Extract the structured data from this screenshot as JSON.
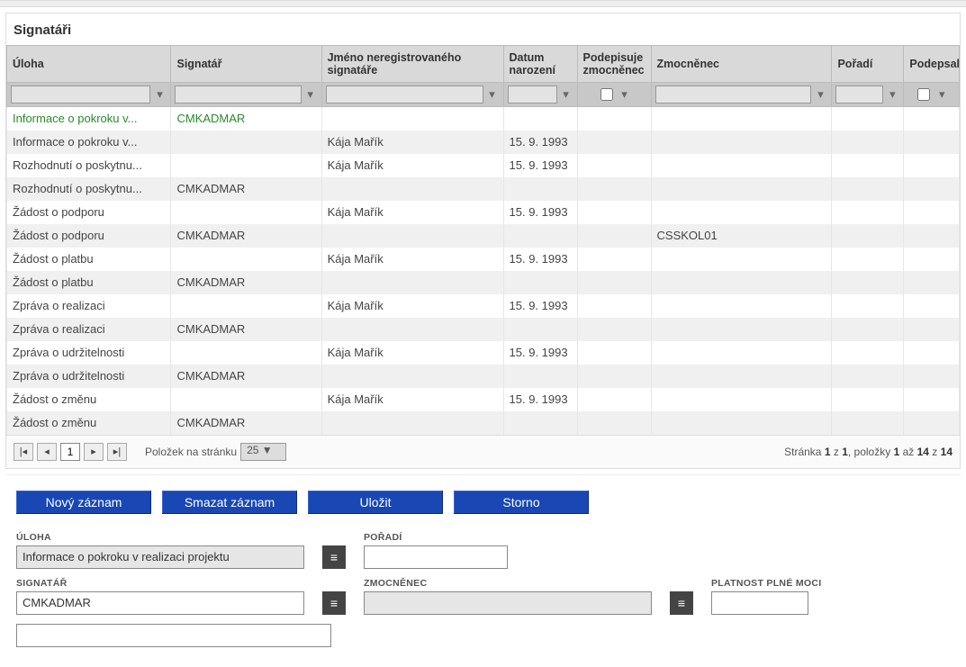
{
  "title": "Signatáři",
  "columns": {
    "uloha": "Úloha",
    "signatar": "Signatář",
    "jmeno": "Jméno neregistrovaného signatáře",
    "datum": "Datum narození",
    "podepisuje": "Podepisuje zmocněnec",
    "zmocnenec": "Zmocněnec",
    "poradi": "Pořadí",
    "podepsal": "Podepsal"
  },
  "rows": [
    {
      "uloha": "Informace o pokroku v...",
      "signatar": "CMKADMAR",
      "jmeno": "",
      "datum": "",
      "zmocnenec": ""
    },
    {
      "uloha": "Informace o pokroku v...",
      "signatar": "",
      "jmeno": "Kája Mařík",
      "datum": "15. 9. 1993",
      "zmocnenec": ""
    },
    {
      "uloha": "Rozhodnutí o poskytnu...",
      "signatar": "",
      "jmeno": "Kája Mařík",
      "datum": "15. 9. 1993",
      "zmocnenec": ""
    },
    {
      "uloha": "Rozhodnutí o poskytnu...",
      "signatar": "CMKADMAR",
      "jmeno": "",
      "datum": "",
      "zmocnenec": ""
    },
    {
      "uloha": "Žádost o podporu",
      "signatar": "",
      "jmeno": "Kája Mařík",
      "datum": "15. 9. 1993",
      "zmocnenec": ""
    },
    {
      "uloha": "Žádost o podporu",
      "signatar": "CMKADMAR",
      "jmeno": "",
      "datum": "",
      "zmocnenec": "CSSKOL01"
    },
    {
      "uloha": "Žádost o platbu",
      "signatar": "",
      "jmeno": "Kája Mařík",
      "datum": "15. 9. 1993",
      "zmocnenec": ""
    },
    {
      "uloha": "Žádost o platbu",
      "signatar": "CMKADMAR",
      "jmeno": "",
      "datum": "",
      "zmocnenec": ""
    },
    {
      "uloha": "Zpráva o realizaci",
      "signatar": "",
      "jmeno": "Kája Mařík",
      "datum": "15. 9. 1993",
      "zmocnenec": ""
    },
    {
      "uloha": "Zpráva o realizaci",
      "signatar": "CMKADMAR",
      "jmeno": "",
      "datum": "",
      "zmocnenec": ""
    },
    {
      "uloha": "Zpráva o udržitelnosti",
      "signatar": "",
      "jmeno": "Kája Mařík",
      "datum": "15. 9. 1993",
      "zmocnenec": ""
    },
    {
      "uloha": "Zpráva o udržitelnosti",
      "signatar": "CMKADMAR",
      "jmeno": "",
      "datum": "",
      "zmocnenec": ""
    },
    {
      "uloha": "Žádost o změnu",
      "signatar": "",
      "jmeno": "Kája Mařík",
      "datum": "15. 9. 1993",
      "zmocnenec": ""
    },
    {
      "uloha": "Žádost o změnu",
      "signatar": "CMKADMAR",
      "jmeno": "",
      "datum": "",
      "zmocnenec": ""
    }
  ],
  "pager": {
    "items_label": "Položek na stránku",
    "per_page": "25",
    "page": "1",
    "summary_prefix": "Stránka ",
    "summary_page": "1",
    "summary_of": " z ",
    "summary_pages": "1",
    "summary_items_prefix": ", položky ",
    "summary_from": "1",
    "summary_to_word": " až ",
    "summary_to": "14",
    "summary_total_word": " z ",
    "summary_total": "14"
  },
  "buttons": {
    "new": "Nový záznam",
    "delete": "Smazat záznam",
    "save": "Uložit",
    "cancel": "Storno"
  },
  "form": {
    "uloha_label": "ÚLOHA",
    "uloha_value": "Informace o pokroku v realizaci projektu",
    "poradi_label": "POŘADÍ",
    "poradi_value": "",
    "signatar_label": "SIGNATÁŘ",
    "signatar_value": "CMKADMAR",
    "zmocnenec_label": "ZMOCNĚNEC",
    "zmocnenec_value": "",
    "platnost_label": "PLATNOST PLNÉ MOCI",
    "platnost_value": "",
    "extra_value": ""
  },
  "col_widths": {
    "uloha": 178,
    "signatar": 163,
    "jmeno": 197,
    "datum": 80,
    "podepisuje": 80,
    "zmocnenec": 196,
    "poradi": 78,
    "podepsal": 60
  }
}
